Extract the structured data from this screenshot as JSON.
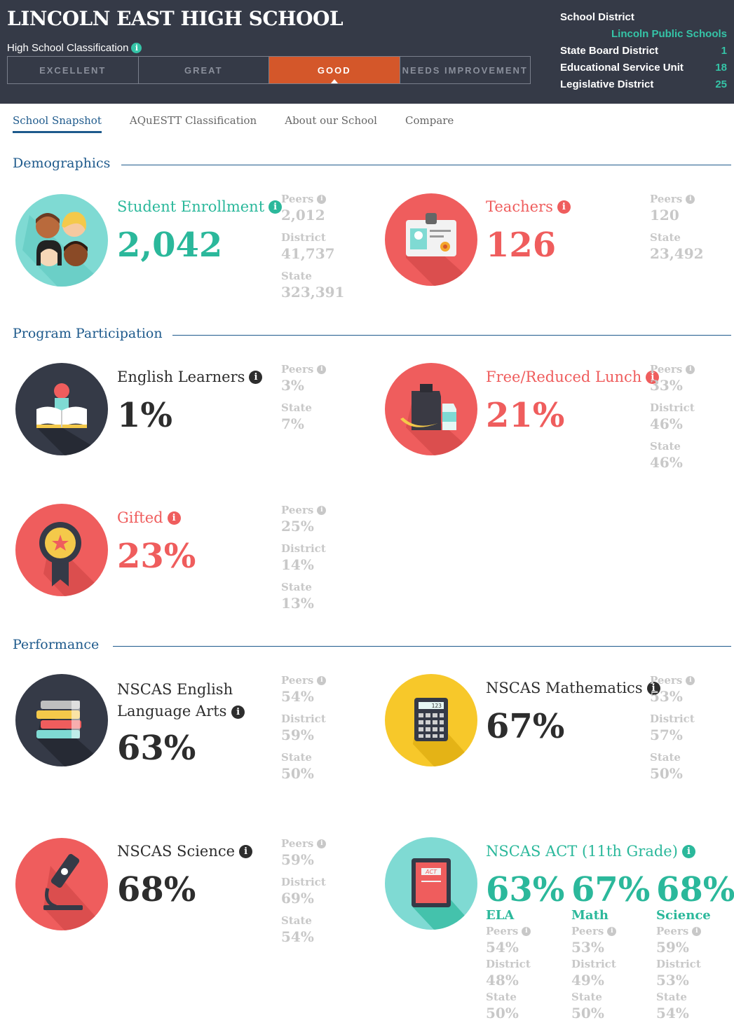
{
  "header": {
    "school_name": "LINCOLN EAST HIGH SCHOOL",
    "classification_label": "High School Classification",
    "classifications": [
      "EXCELLENT",
      "GREAT",
      "GOOD",
      "NEEDS IMPROVEMENT"
    ],
    "active_classification": "GOOD",
    "district_label": "School District",
    "district_value": "Lincoln Public Schools",
    "state_board_label": "State Board District",
    "state_board_value": "1",
    "esu_label": "Educational Service Unit",
    "esu_value": "18",
    "legislative_label": "Legislative District",
    "legislative_value": "25",
    "accent": "#35c4a7",
    "bg": "#353a47",
    "active_color": "#d4572a"
  },
  "tabs": [
    "School Snapshot",
    "AQuESTT Classification",
    "About our School",
    "Compare"
  ],
  "sections": {
    "demographics": "Demographics",
    "program": "Program Participation",
    "performance": "Performance"
  },
  "labels": {
    "peers": "Peers",
    "district": "District",
    "state": "State",
    "info": "i"
  },
  "enrollment": {
    "label": "Student Enrollment",
    "value": "2,042",
    "peers": "2,012",
    "district": "41,737",
    "state": "323,391",
    "icon": "students-icon"
  },
  "teachers": {
    "label": "Teachers",
    "value": "126",
    "peers": "120",
    "state": "23,492",
    "icon": "id-badge-icon"
  },
  "english": {
    "label": "English Learners",
    "value": "1%",
    "peers": "3%",
    "state": "7%",
    "icon": "reading-icon"
  },
  "lunch": {
    "label": "Free/Reduced Lunch",
    "value": "21%",
    "peers": "33%",
    "district": "46%",
    "state": "46%",
    "icon": "lunch-icon"
  },
  "gifted": {
    "label": "Gifted",
    "value": "23%",
    "peers": "25%",
    "district": "14%",
    "state": "13%",
    "icon": "award-icon"
  },
  "ela": {
    "label_line1": "NSCAS English",
    "label_line2": "Language Arts",
    "value": "63%",
    "peers": "54%",
    "district": "59%",
    "state": "50%",
    "icon": "books-icon"
  },
  "math": {
    "label": "NSCAS Mathematics",
    "value": "67%",
    "peers": "53%",
    "district": "57%",
    "state": "50%",
    "icon": "calculator-icon",
    "calc_display": "123"
  },
  "science": {
    "label": "NSCAS Science",
    "value": "68%",
    "peers": "59%",
    "district": "69%",
    "state": "54%",
    "icon": "microscope-icon"
  },
  "act": {
    "label": "NSCAS ACT (11th Grade)",
    "icon": "act-book-icon",
    "book_label": "ACT",
    "cols": [
      {
        "value": "63%",
        "name": "ELA",
        "peers": "54%",
        "district": "48%",
        "state": "50%"
      },
      {
        "value": "67%",
        "name": "Math",
        "peers": "53%",
        "district": "49%",
        "state": "50%"
      },
      {
        "value": "68%",
        "name": "Science",
        "peers": "59%",
        "district": "53%",
        "state": "54%"
      }
    ]
  }
}
